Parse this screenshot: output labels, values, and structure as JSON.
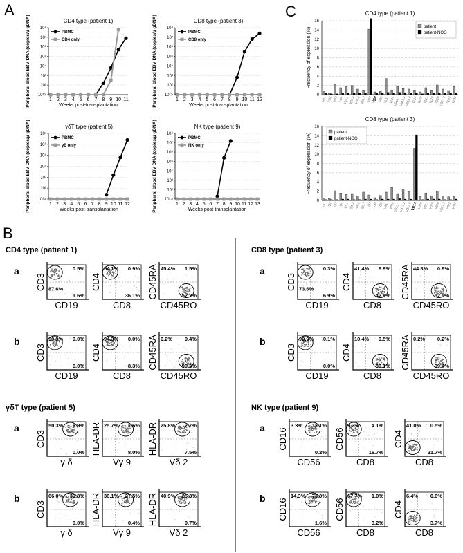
{
  "panel_labels": {
    "a": "A",
    "b": "B",
    "c": "C"
  },
  "chart_data": [
    {
      "type": "line",
      "title": "CD4 type (patient 1)",
      "xlabel": "Weeks post-transplantation",
      "ylabel": "Peripheral blood EBV DNA (copies/µ gDNA)",
      "y_scale": "log",
      "ylim_exponents": [
        1,
        8
      ],
      "y_ticks": [
        "10¹>",
        "10²",
        "10³",
        "10⁴",
        "10⁵",
        "10⁶",
        "10⁷",
        "10⁸"
      ],
      "x": [
        1,
        2,
        3,
        4,
        5,
        6,
        7,
        8,
        9,
        10,
        11
      ],
      "legend_location": "top-left",
      "series": [
        {
          "name": "PBMC",
          "color": "#000000",
          "marker": "circle",
          "values": [
            1,
            1,
            1,
            1,
            1,
            1,
            1,
            2.2,
            3.8,
            5.7,
            6.9
          ]
        },
        {
          "name": "CD4 only",
          "color": "#999999",
          "marker": "square",
          "values": [
            1,
            1,
            1,
            1,
            1,
            1,
            1,
            1,
            2.5,
            7.8,
            null
          ]
        }
      ]
    },
    {
      "type": "line",
      "title": "CD8 type (patient 3)",
      "xlabel": "Weeks post-transplantation",
      "ylabel": "Peripheral blood EBV DNA (copies/µ gDNA)",
      "y_scale": "log",
      "ylim_exponents": [
        1,
        8
      ],
      "y_ticks": [
        "10¹>",
        "10²",
        "10³",
        "10⁴",
        "10⁵",
        "10⁶",
        "10⁷",
        "10⁸"
      ],
      "x": [
        1,
        2,
        3,
        4,
        5,
        6,
        7,
        8,
        9,
        10,
        11,
        12
      ],
      "legend_location": "top-left",
      "series": [
        {
          "name": "PBMC",
          "color": "#000000",
          "marker": "circle",
          "values": [
            1,
            1,
            1,
            1,
            1,
            1,
            1,
            1,
            2.8,
            5.5,
            6.8,
            7.4
          ]
        },
        {
          "name": "CD8 only",
          "color": "#999999",
          "marker": "square",
          "values": [
            1,
            1,
            1,
            1,
            1,
            1,
            1,
            1,
            1,
            1,
            1,
            1
          ]
        }
      ]
    },
    {
      "type": "line",
      "title": "γδT type (patient 5)",
      "xlabel": "Weeks post-transplantation",
      "ylabel": "Peripheral blood EBV DNA (copies/µ gDNA)",
      "y_scale": "log",
      "ylim_exponents": [
        1,
        7
      ],
      "y_ticks": [
        "10¹>",
        "10²",
        "10³",
        "10⁴",
        "10⁵",
        "10⁶",
        "10⁷"
      ],
      "x": [
        1,
        2,
        3,
        4,
        5,
        6,
        7,
        8,
        9,
        10,
        11,
        12
      ],
      "legend_location": "top-left",
      "series": [
        {
          "name": "PBMC",
          "color": "#000000",
          "marker": "circle",
          "values": [
            null,
            null,
            null,
            null,
            null,
            null,
            null,
            null,
            1.4,
            3.2,
            4.8,
            6.4
          ]
        },
        {
          "name": "γδ only",
          "color": "#999999",
          "marker": "square",
          "values": [
            1,
            1,
            1,
            1,
            1,
            1,
            1,
            1,
            1,
            1,
            1,
            1
          ]
        }
      ]
    },
    {
      "type": "line",
      "title": "NK type (patient 9)",
      "xlabel": "Weeks post-transplantation",
      "ylabel": "Peripheral blood EBV DNA (copies/µ gDNA)",
      "y_scale": "log",
      "ylim_exponents": [
        1,
        8
      ],
      "y_ticks": [
        "10¹>",
        "10²",
        "10³",
        "10⁴",
        "10⁵",
        "10⁶",
        "10⁷",
        "10⁸"
      ],
      "x": [
        1,
        2,
        3,
        4,
        5,
        6,
        7,
        8,
        9,
        10,
        11,
        12,
        13
      ],
      "legend_location": "top-left",
      "series": [
        {
          "name": "PBMC",
          "color": "#000000",
          "marker": "circle",
          "values": [
            null,
            null,
            null,
            null,
            null,
            null,
            1.3,
            5.4,
            7.2,
            null,
            null,
            null,
            null
          ]
        },
        {
          "name": "NK only",
          "color": "#999999",
          "marker": "square",
          "values": [
            1,
            1,
            1,
            1,
            1,
            1,
            1,
            1,
            1,
            1,
            1,
            1,
            1
          ]
        }
      ]
    },
    {
      "type": "bar",
      "title": "CD4 type (patient 1)",
      "ylabel": "Frequency of expression (%)",
      "ylim": [
        0,
        16
      ],
      "y_ticks": [
        0,
        2,
        4,
        6,
        8,
        10,
        12,
        14,
        16
      ],
      "legend_location": "top-right",
      "categories": [
        "Vβ1",
        "Vβ2",
        "Vβ3",
        "Vβ4",
        "Vβ5.1",
        "Vβ5.2",
        "Vβ5.3",
        "Vβ6.7",
        "Vβ7",
        "Vβ8",
        "Vβ9",
        "Vβ11",
        "Vβ12",
        "Vβ13.1",
        "Vβ13.2",
        "Vβ13.6",
        "Vβ14",
        "Vβ16",
        "Vβ17",
        "Vβ18",
        "Vβ20",
        "Vβ21.3",
        "Vβ22",
        "Vβ23"
      ],
      "highlight_category": "Vβ8",
      "series": [
        {
          "name": "patient",
          "color": "#8c8c8c",
          "values": [
            0.8,
            0.3,
            2.2,
            1.5,
            1.8,
            2.0,
            1.2,
            1.0,
            14.2,
            0.6,
            0.7,
            3.5,
            1.0,
            1.8,
            1.3,
            1.2,
            1.0,
            0.6,
            1.5,
            1.0,
            2.1,
            1.2,
            0.9,
            1.8
          ]
        },
        {
          "name": "patient-NOG",
          "color": "#000000",
          "values": [
            0.3,
            0.2,
            0.2,
            0.3,
            0.4,
            0.3,
            0.3,
            0.3,
            16.5,
            0.3,
            0.4,
            0.5,
            0.4,
            0.5,
            0.3,
            0.4,
            0.3,
            0.2,
            0.4,
            0.3,
            0.4,
            0.3,
            0.3,
            0.4
          ]
        }
      ]
    },
    {
      "type": "bar",
      "title": "CD8 type (patient 3)",
      "ylabel": "Frequency of expression (%)",
      "ylim": [
        0,
        16
      ],
      "y_ticks": [
        0,
        2,
        4,
        6,
        8,
        10,
        12,
        14,
        16
      ],
      "legend_location": "top-left",
      "categories": [
        "Vβ1",
        "Vβ2",
        "Vβ3",
        "Vβ4",
        "Vβ5.1",
        "Vβ5.2",
        "Vβ5.3",
        "Vβ6.7",
        "Vβ7",
        "Vβ8",
        "Vβ9",
        "Vβ11",
        "Vβ12",
        "Vβ13.1",
        "Vβ13.2",
        "Vβ13.6",
        "Vβ14",
        "Vβ16",
        "Vβ17",
        "Vβ18",
        "Vβ20",
        "Vβ21.3",
        "Vβ22",
        "Vβ23"
      ],
      "highlight_category": "Vβ14",
      "series": [
        {
          "name": "patient",
          "color": "#8c8c8c",
          "values": [
            0.5,
            0.4,
            2.1,
            1.6,
            1.3,
            1.5,
            1.0,
            1.8,
            1.2,
            0.6,
            1.1,
            1.8,
            2.8,
            1.5,
            2.5,
            1.9,
            11.3,
            0.9,
            1.6,
            1.0,
            2.0,
            1.0,
            0.8,
            0.9
          ]
        },
        {
          "name": "patient-NOG",
          "color": "#000000",
          "values": [
            0.2,
            0.2,
            0.2,
            0.3,
            0.3,
            0.2,
            0.2,
            0.3,
            0.3,
            0.2,
            0.3,
            0.3,
            0.3,
            0.4,
            0.3,
            0.3,
            14.2,
            0.2,
            0.3,
            0.3,
            0.3,
            0.2,
            0.2,
            0.3
          ]
        }
      ]
    }
  ],
  "flow": {
    "groups": [
      {
        "title": "CD4 type (patient 1)",
        "rows": [
          {
            "label": "a",
            "plots": [
              {
                "y": "CD3",
                "x": "CD19",
                "pct": [
                  "",
                  "0.5%",
                  "87.6%",
                  "1.6%"
                ],
                "gate": "ul"
              },
              {
                "y": "CD4",
                "x": "CD8",
                "pct": [
                  "54.1%",
                  "0.9%",
                  "",
                  "36.1%"
                ],
                "gate": "ul"
              },
              {
                "y": "CD45RA",
                "x": "CD45RO",
                "pct": [
                  "45.4%",
                  "1.5%",
                  "",
                  "52.2%"
                ],
                "gate": "lr"
              }
            ]
          },
          {
            "label": "b",
            "plots": [
              {
                "y": "CD3",
                "x": "CD19",
                "pct": [
                  "99.9%",
                  "0.0%",
                  "",
                  "0.0%"
                ],
                "gate": "ul"
              },
              {
                "y": "CD4",
                "x": "CD8",
                "pct": [
                  "94.3%",
                  "0.0%",
                  "",
                  "8.3%"
                ],
                "gate": "ul"
              },
              {
                "y": "CD45RA",
                "x": "CD45RO",
                "pct": [
                  "0.2%",
                  "0.4%",
                  "",
                  "99.3%"
                ],
                "gate": "lr"
              }
            ]
          }
        ]
      },
      {
        "title": "CD8 type (patient 3)",
        "rows": [
          {
            "label": "a",
            "plots": [
              {
                "y": "CD3",
                "x": "CD19",
                "pct": [
                  "",
                  "0.3%",
                  "73.6%",
                  "6.9%"
                ],
                "gate": "ul"
              },
              {
                "y": "CD4",
                "x": "CD8",
                "pct": [
                  "41.4%",
                  "6.9%",
                  "",
                  "42.8%"
                ],
                "gate": "lr"
              },
              {
                "y": "CD45RA",
                "x": "CD45RO",
                "pct": [
                  "44.8%",
                  "0.9%",
                  "",
                  "52.5%"
                ],
                "gate": "lr"
              }
            ]
          },
          {
            "label": "b",
            "plots": [
              {
                "y": "CD3",
                "x": "CD19",
                "pct": [
                  "99.9%",
                  "0.1%",
                  "",
                  "0.0%"
                ],
                "gate": "ul"
              },
              {
                "y": "CD4",
                "x": "CD8",
                "pct": [
                  "10.4%",
                  "0.5%",
                  "",
                  "89.1%"
                ],
                "gate": "lr"
              },
              {
                "y": "CD45RA",
                "x": "CD45RO",
                "pct": [
                  "0.2%",
                  "0.2%",
                  "",
                  "99.4%"
                ],
                "gate": "lr"
              }
            ]
          }
        ]
      },
      {
        "title": "γδT type (patient 5)",
        "rows": [
          {
            "label": "a",
            "plots": [
              {
                "y": "CD3",
                "x": "γ δ",
                "pct": [
                  "50.3%",
                  "8.9%",
                  "",
                  "0.0%"
                ],
                "gate": "ur"
              },
              {
                "y": "HLA-DR",
                "x": "Vγ 9",
                "pct": [
                  "25.7%",
                  "2.6%",
                  "",
                  "8.0%"
                ],
                "gate": "ur"
              },
              {
                "y": "HLA-DR",
                "x": "Vδ 2",
                "pct": [
                  "25.8%",
                  "2.7%",
                  "",
                  "7.5%"
                ],
                "gate": "ur"
              }
            ]
          },
          {
            "label": "b",
            "plots": [
              {
                "y": "CD3",
                "x": "γ δ",
                "pct": [
                  "66.0%",
                  "33.8%",
                  "",
                  "0.0%"
                ],
                "gate": "ur"
              },
              {
                "y": "HLA-DR",
                "x": "Vγ 9",
                "pct": [
                  "36.1%",
                  "27.5%",
                  "",
                  "0.4%"
                ],
                "gate": "ur"
              },
              {
                "y": "HLA-DR",
                "x": "Vδ 2",
                "pct": [
                  "40.9%",
                  "25.3%",
                  "",
                  "0.7%"
                ],
                "gate": "ur"
              }
            ]
          }
        ]
      },
      {
        "title": "NK type (patient 9)",
        "rows": [
          {
            "label": "a",
            "plots": [
              {
                "y": "CD16",
                "x": "CD56",
                "pct": [
                  "3.3%",
                  "12.1%",
                  "",
                  "0.2%"
                ],
                "gate": "ur"
              },
              {
                "y": "CD56",
                "x": "CD8",
                "pct": [
                  "9.3%",
                  "4.1%",
                  "",
                  "16.7%"
                ],
                "gate": "ul"
              },
              {
                "y": "CD4",
                "x": "CD8",
                "pct": [
                  "41.0%",
                  "0.5%",
                  "",
                  "21.7%"
                ],
                "gate": "ll"
              }
            ]
          },
          {
            "label": "b",
            "plots": [
              {
                "y": "CD16",
                "x": "CD56",
                "pct": [
                  "14.3%",
                  "73.0%",
                  "",
                  "1.6%"
                ],
                "gate": "ur"
              },
              {
                "y": "CD56",
                "x": "CD8",
                "pct": [
                  "67.7%",
                  "1.0%",
                  "",
                  "3.2%"
                ],
                "gate": "ul"
              },
              {
                "y": "CD4",
                "x": "CD8",
                "pct": [
                  "6.4%",
                  "0.0%",
                  "",
                  "3.7%"
                ],
                "gate": "ll"
              }
            ]
          }
        ]
      }
    ]
  }
}
